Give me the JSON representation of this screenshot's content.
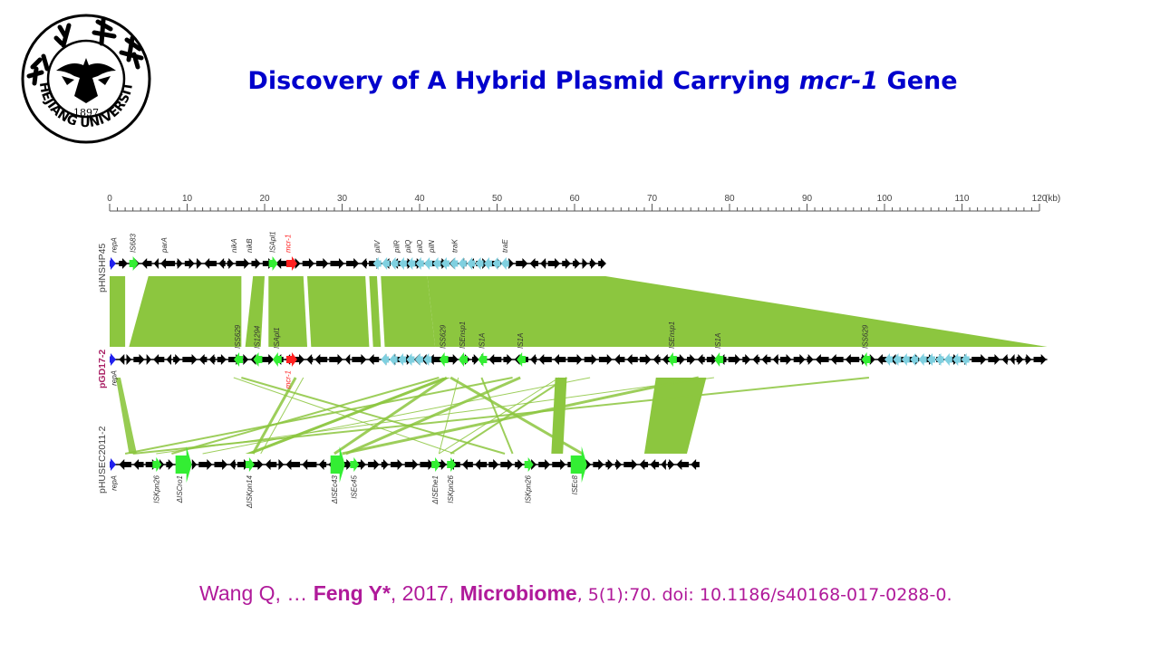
{
  "title": {
    "prefix": "Discovery of A Hybrid Plasmid Carrying ",
    "gene": "mcr-1",
    "suffix": " Gene"
  },
  "logo": {
    "year": "1897",
    "ring_text": "ZHEJIANG UNIVERSITY"
  },
  "citation": {
    "authors_start": "Wang Q, … ",
    "corresponding": "Feng Y*",
    "year": ", 2017, ",
    "journal": "Microbiome",
    "details": ", 5(1):70. doi: 10.1186/s40168-017-0288-0."
  },
  "figure": {
    "scale": {
      "min": 0,
      "max": 120,
      "step": 10,
      "unit": "(kb)"
    },
    "colors": {
      "backbone": "#000000",
      "is": "#33ee33",
      "mcr": "#ff2020",
      "rep": "#2020ee",
      "conj": "#7fd0e0",
      "homology": "#8cc63f"
    },
    "plasmids": [
      {
        "name": "pHNSHP45",
        "name_color": "#444444",
        "length_kb": 64,
        "labels": [
          {
            "text": "repA",
            "kb": 0.5
          },
          {
            "text": "IS683",
            "kb": 3
          },
          {
            "text": "parA",
            "kb": 7
          },
          {
            "text": "nikA",
            "kb": 16
          },
          {
            "text": "nikB",
            "kb": 18
          },
          {
            "text": "ISApl1",
            "kb": 21
          },
          {
            "text": "mcr-1",
            "kb": 23,
            "color": "#ff2020"
          },
          {
            "text": "pilV",
            "kb": 34.5
          },
          {
            "text": "pilR",
            "kb": 37
          },
          {
            "text": "pilQ",
            "kb": 38.5
          },
          {
            "text": "pilO",
            "kb": 40
          },
          {
            "text": "pilN",
            "kb": 41.5
          },
          {
            "text": "traK",
            "kb": 44.5
          },
          {
            "text": "traE",
            "kb": 51
          }
        ]
      },
      {
        "name": "pGD17-2",
        "name_color": "#aa2266",
        "length_kb": 121,
        "labels": [
          {
            "text": "ISS629",
            "kb": 16.5
          },
          {
            "text": "IS1294",
            "kb": 19
          },
          {
            "text": "ISApl1",
            "kb": 21.5
          },
          {
            "text": "ISS629",
            "kb": 43
          },
          {
            "text": "ISEnsp1",
            "kb": 45.5
          },
          {
            "text": "IS1A",
            "kb": 48
          },
          {
            "text": "IS1A",
            "kb": 53
          },
          {
            "text": "ISEnsp1",
            "kb": 72.5
          },
          {
            "text": "IS1A",
            "kb": 78.5
          },
          {
            "text": "ISS629",
            "kb": 97.5
          }
        ],
        "labels_below": [
          {
            "text": "repA",
            "kb": 0.5
          },
          {
            "text": "mcr-1",
            "kb": 23,
            "color": "#ff2020"
          }
        ]
      },
      {
        "name": "pHUSEC2011-2",
        "name_color": "#444444",
        "length_kb": 76,
        "labels_below": [
          {
            "text": "repA",
            "kb": 0.5
          },
          {
            "text": "ISKpn26",
            "kb": 6
          },
          {
            "text": "ΔISCro1",
            "kb": 9
          },
          {
            "text": "ΔISKpn14",
            "kb": 18
          },
          {
            "text": "ΔISEc43",
            "kb": 29
          },
          {
            "text": "ISEc45",
            "kb": 31.5
          },
          {
            "text": "ΔISEhe1",
            "kb": 42
          },
          {
            "text": "ISKpn26",
            "kb": 44
          },
          {
            "text": "ISKpn26",
            "kb": 54
          },
          {
            "text": "ISEc8",
            "kb": 60
          }
        ]
      }
    ]
  }
}
